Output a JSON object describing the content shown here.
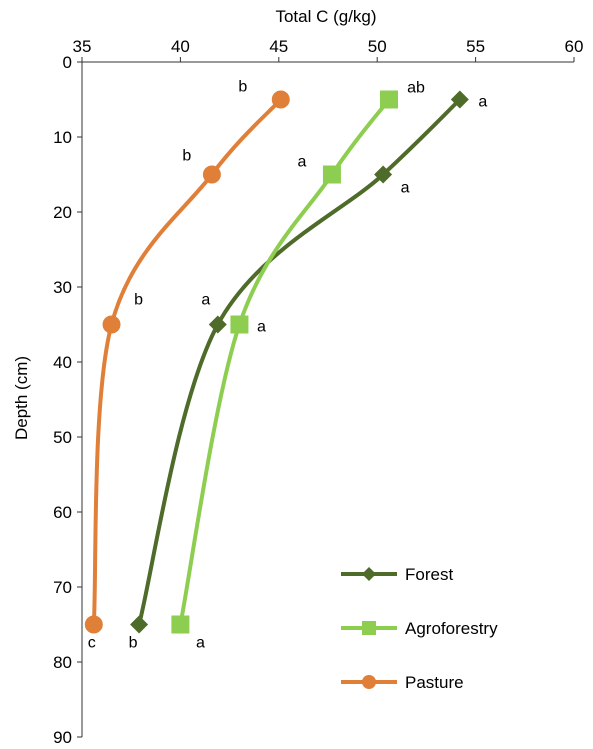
{
  "chart_data": {
    "type": "line",
    "title": "",
    "xlabel": "Total C (g/kg)",
    "ylabel": "Depth (cm)",
    "xlim": [
      35,
      60
    ],
    "ylim": [
      0,
      90
    ],
    "y_inverted": true,
    "x_axis_position": "top",
    "x_ticks": [
      35,
      40,
      45,
      50,
      55,
      60
    ],
    "y_ticks": [
      0,
      10,
      20,
      30,
      40,
      50,
      60,
      70,
      80,
      90
    ],
    "grid": false,
    "legend_position": "bottom-right",
    "series": [
      {
        "name": "Forest",
        "color": "#4e6b2a",
        "marker": "diamond",
        "points": [
          {
            "x": 54.2,
            "y": 5,
            "label": "a"
          },
          {
            "x": 50.3,
            "y": 15,
            "label": "a"
          },
          {
            "x": 41.9,
            "y": 35,
            "label": "a"
          },
          {
            "x": 37.9,
            "y": 75,
            "label": "b"
          }
        ]
      },
      {
        "name": "Agroforestry",
        "color": "#8dce50",
        "marker": "square",
        "points": [
          {
            "x": 50.6,
            "y": 5,
            "label": "ab"
          },
          {
            "x": 47.7,
            "y": 15,
            "label": "a"
          },
          {
            "x": 43.0,
            "y": 35,
            "label": "a"
          },
          {
            "x": 40.0,
            "y": 75,
            "label": "a"
          }
        ]
      },
      {
        "name": "Pasture",
        "color": "#e07f38",
        "marker": "circle",
        "points": [
          {
            "x": 45.1,
            "y": 5,
            "label": "b"
          },
          {
            "x": 41.6,
            "y": 15,
            "label": "b"
          },
          {
            "x": 36.5,
            "y": 35,
            "label": "b"
          },
          {
            "x": 35.6,
            "y": 75,
            "label": "c"
          }
        ]
      }
    ]
  }
}
